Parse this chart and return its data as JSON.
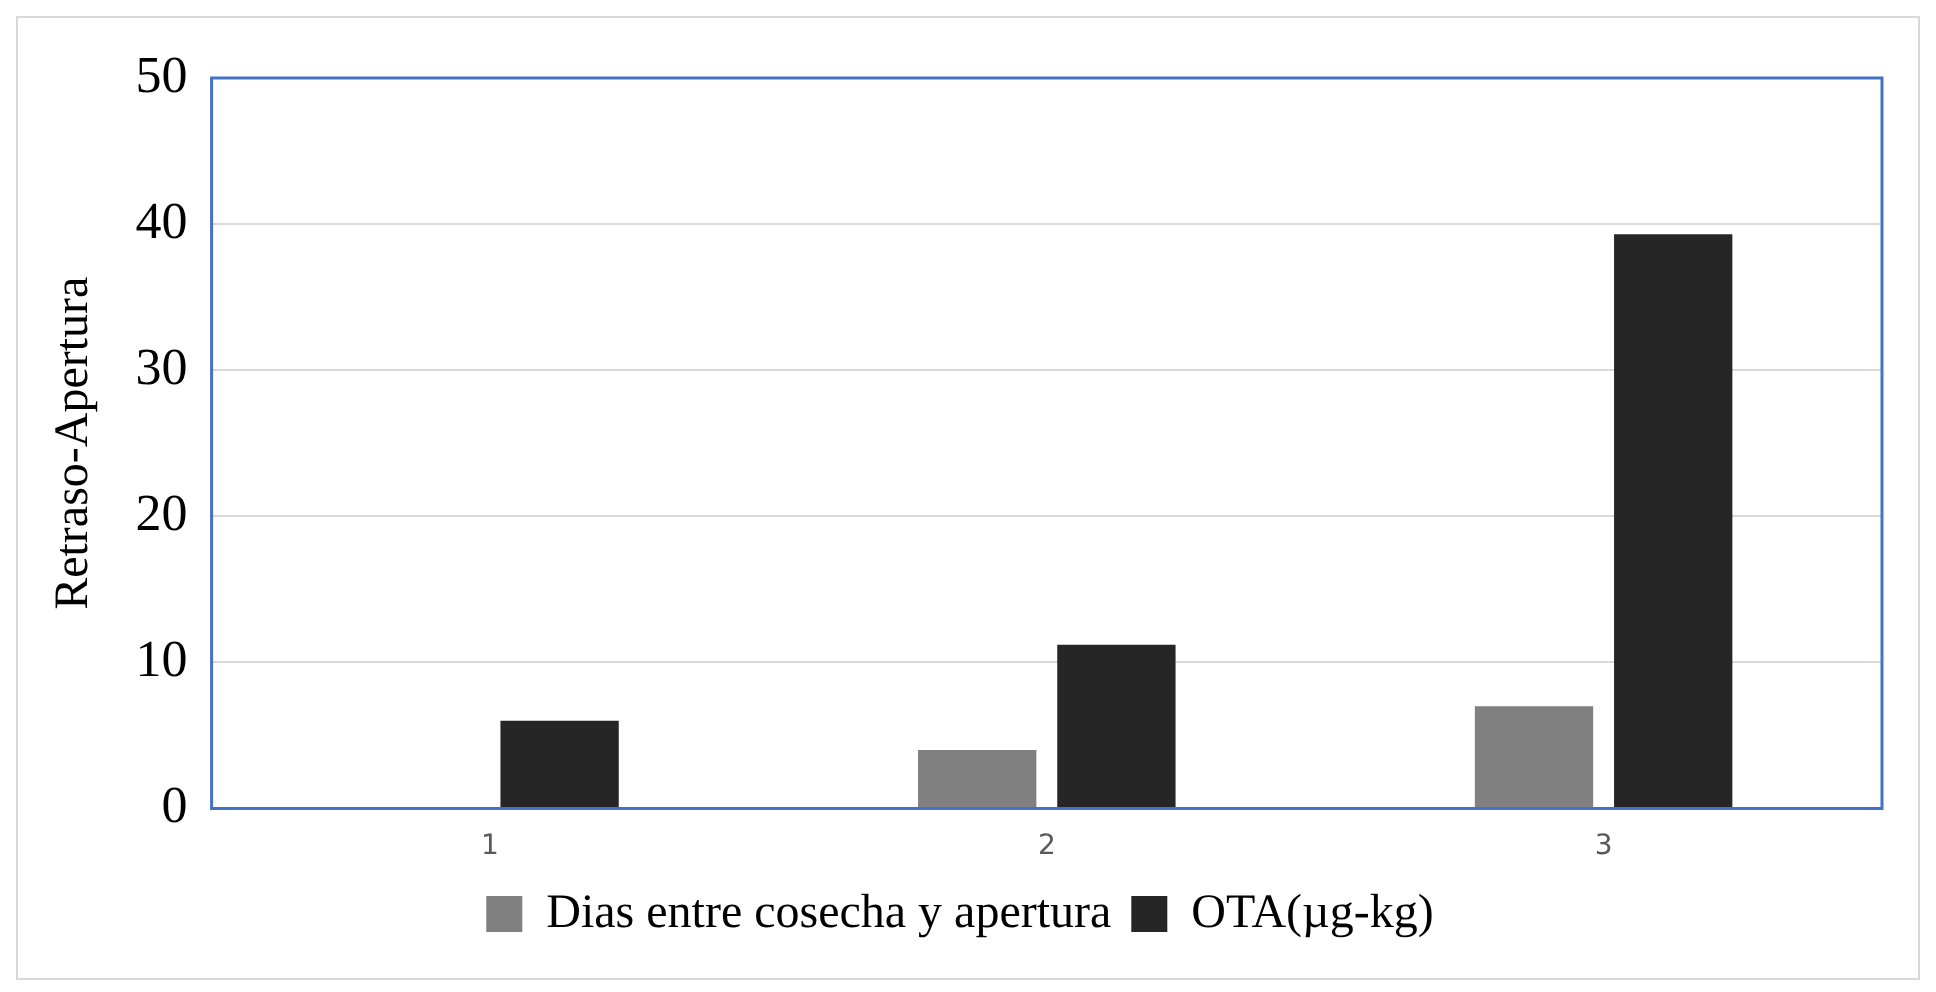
{
  "chart_data": {
    "type": "bar",
    "ylabel": "Retraso-Apertura",
    "categories": [
      "1",
      "2",
      "3"
    ],
    "series": [
      {
        "name": "Dias entre cosecha y apertura",
        "color": "#808080",
        "values": [
          0,
          4,
          7
        ]
      },
      {
        "name": "OTA(µg-kg)",
        "color": "#262626",
        "values": [
          6,
          11.2,
          39.3
        ]
      }
    ],
    "ylim": [
      0,
      50
    ],
    "yticks": [
      0,
      10,
      20,
      30,
      40,
      50
    ],
    "grid": "y",
    "legend": "bottom"
  }
}
